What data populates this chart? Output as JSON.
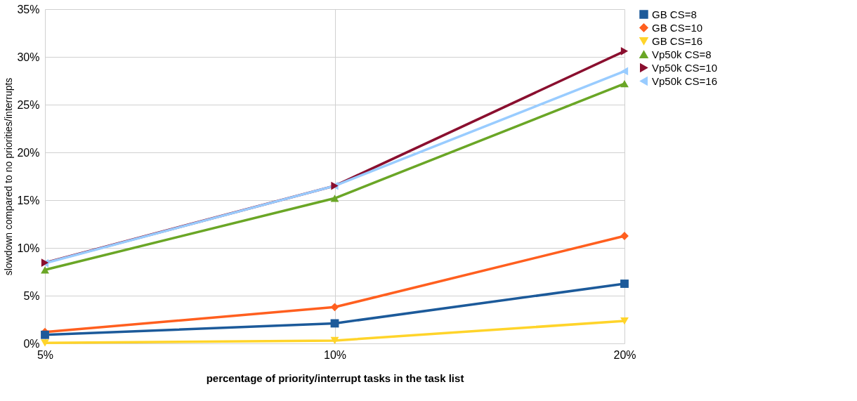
{
  "chart_data": {
    "type": "line",
    "xlabel": "percentage of priority/interrupt tasks in the task list",
    "ylabel": "slowdown compared to no priorities/interrupts",
    "categories": [
      "5%",
      "10%",
      "20%"
    ],
    "series": [
      {
        "name": "GB CS=8",
        "color": "#1c5a9a",
        "marker": "square",
        "values": [
          0.9,
          2.1,
          6.25
        ]
      },
      {
        "name": "GB CS=10",
        "color": "#ff5f1f",
        "marker": "diamond",
        "values": [
          1.2,
          3.8,
          11.25
        ]
      },
      {
        "name": "GB CS=16",
        "color": "#ffd42a",
        "marker": "triangle-down",
        "values": [
          0.05,
          0.3,
          2.35
        ]
      },
      {
        "name": "Vp50k CS=8",
        "color": "#6aa626",
        "marker": "triangle-up",
        "values": [
          7.7,
          15.2,
          27.2
        ]
      },
      {
        "name": "Vp50k CS=10",
        "color": "#8a0f2f",
        "marker": "triangle-right",
        "values": [
          8.45,
          16.5,
          30.6
        ]
      },
      {
        "name": "Vp50k CS=16",
        "color": "#99ccff",
        "marker": "triangle-left",
        "values": [
          8.4,
          16.5,
          28.5
        ]
      }
    ],
    "ylim": [
      0,
      35
    ],
    "yticks": [
      {
        "value": 0,
        "label": "0%"
      },
      {
        "value": 5,
        "label": "5%"
      },
      {
        "value": 10,
        "label": "10%"
      },
      {
        "value": 15,
        "label": "15%"
      },
      {
        "value": 20,
        "label": "20%"
      },
      {
        "value": 25,
        "label": "25%"
      },
      {
        "value": 30,
        "label": "30%"
      },
      {
        "value": 35,
        "label": "35%"
      }
    ],
    "grid": true,
    "legend": "right",
    "line_style": "solid"
  }
}
